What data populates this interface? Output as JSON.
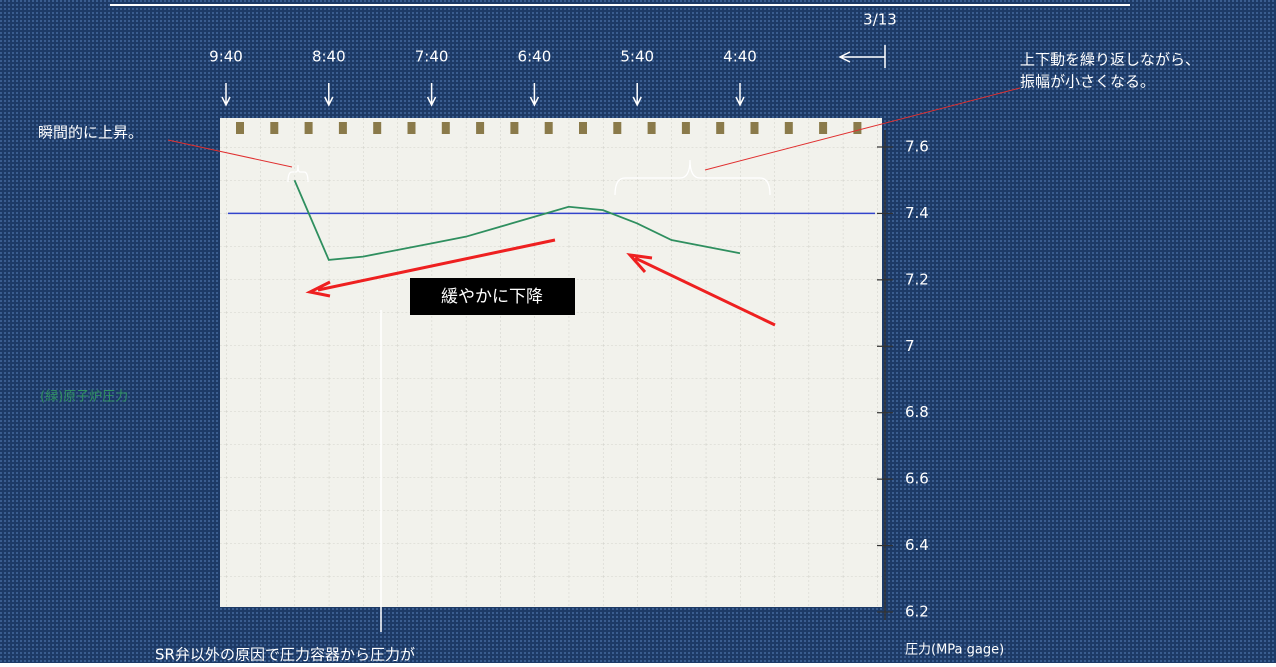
{
  "chart_data": {
    "type": "line",
    "date_label": "3/13",
    "categories": [
      "9:40",
      null,
      null,
      "8:40",
      null,
      null,
      "7:40",
      null,
      null,
      "6:40",
      null,
      null,
      "5:40",
      null,
      null,
      "4:40"
    ],
    "series": [
      {
        "name": "(緑)原子炉圧力",
        "color": "#2f8f5f",
        "values": [
          null,
          null,
          7.5,
          7.26,
          7.27,
          7.29,
          7.31,
          7.33,
          7.36,
          7.39,
          7.42,
          7.41,
          7.37,
          7.32,
          7.3,
          7.28
        ]
      }
    ],
    "ylim": [
      6.2,
      7.6
    ],
    "yticks": [
      7.6,
      7.4,
      7.2,
      7.0,
      6.8,
      6.6,
      6.4,
      6.2
    ],
    "y_label": "圧力(MPa gage)",
    "reference_line": {
      "value": 7.4,
      "color": "#3344cc"
    },
    "annotations": {
      "spike": "瞬間的に上昇。",
      "oscillation": [
        "上下動を繰り返しながら、",
        "振幅が小さくなる。"
      ],
      "decline": "緩やかに下降",
      "bottom_note": "SR弁以外の原因で圧力容器から圧力が"
    }
  }
}
